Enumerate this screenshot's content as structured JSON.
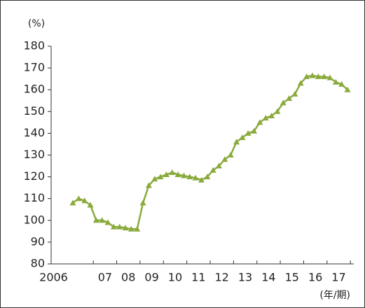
{
  "chart_data": {
    "type": "line",
    "y_label": "(%)",
    "x_label": "(年/期)",
    "categories": [
      null,
      "2006",
      null,
      null,
      null,
      "07",
      null,
      null,
      null,
      "08",
      null,
      null,
      null,
      "09",
      null,
      null,
      null,
      "10",
      null,
      null,
      null,
      "11",
      null,
      null,
      null,
      "12",
      null,
      null,
      null,
      "13",
      null,
      null,
      null,
      "14",
      null,
      null,
      null,
      "15",
      null,
      null,
      null,
      "16",
      null,
      null,
      null,
      "17",
      null,
      null
    ],
    "series": [
      {
        "name": null,
        "color": "#8aaa3c",
        "values": [
          108,
          110,
          109,
          107,
          100,
          100,
          99,
          97,
          97,
          96.5,
          96,
          96,
          108,
          116,
          119,
          120,
          121,
          122,
          121,
          120.5,
          120,
          119.5,
          118.5,
          120,
          123,
          125,
          128,
          130,
          136,
          138,
          140,
          141,
          145,
          147,
          148,
          150,
          154,
          156,
          158,
          163,
          166,
          166.5,
          166,
          166,
          165.5,
          163.5,
          162.5,
          160
        ]
      }
    ],
    "ylim": [
      80,
      180
    ],
    "yticks": [
      80,
      90,
      100,
      110,
      120,
      130,
      140,
      150,
      160,
      170,
      180
    ],
    "marker": "triangle"
  }
}
